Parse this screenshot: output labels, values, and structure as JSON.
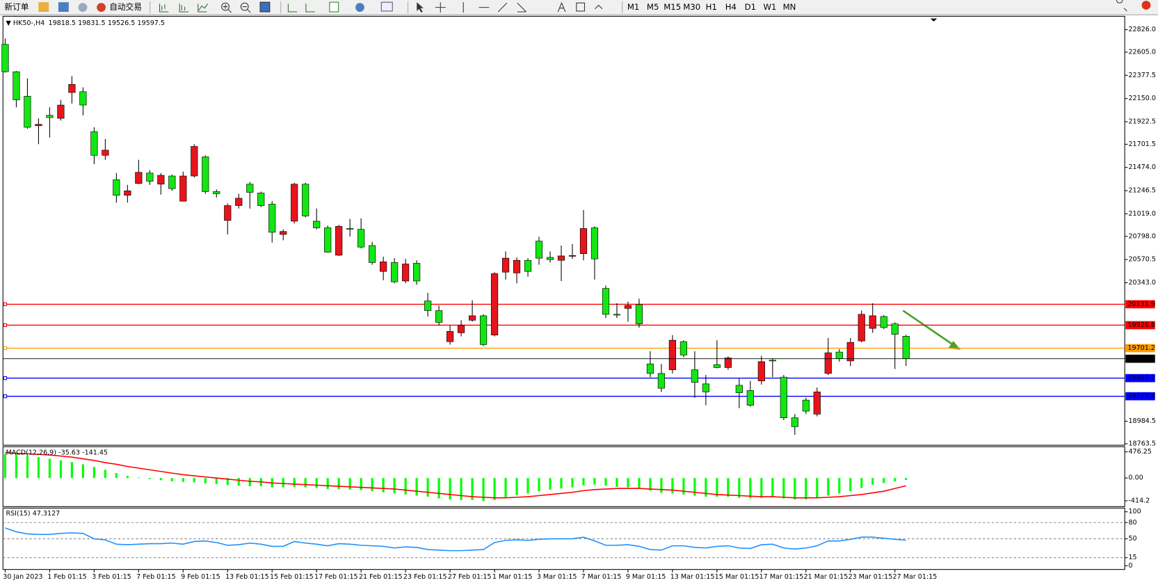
{
  "toolbar": {
    "new_order": "新订单",
    "auto_trade": "自动交易",
    "timeframes": [
      "M1",
      "M5",
      "M15",
      "M30",
      "H1",
      "H4",
      "D1",
      "W1",
      "MN"
    ]
  },
  "chart_data": [
    {
      "type": "candlestick",
      "title": "HK50-,H4",
      "categories": [
        "30 Jan 2023",
        null,
        null,
        null,
        "1 Feb 01:15",
        null,
        null,
        null,
        "3 Feb 01:15",
        null,
        null,
        null,
        "7 Feb 01:15",
        null,
        null,
        null,
        "9 Feb 01:15",
        null,
        null,
        null,
        "13 Feb 01:15",
        null,
        null,
        null,
        "15 Feb 01:15",
        null,
        null,
        null,
        "17 Feb 01:15",
        null,
        null,
        null,
        "21 Feb 01:15",
        null,
        null,
        null,
        "23 Feb 01:15",
        null,
        null,
        null,
        "27 Feb 01:15",
        null,
        null,
        null,
        "1 Mar 01:15",
        null,
        null,
        null,
        "3 Mar 01:15",
        null,
        null,
        null,
        "7 Mar 01:15",
        null,
        null,
        null,
        "9 Mar 01:15",
        null,
        null,
        null,
        "13 Mar 01:15",
        null,
        null,
        null,
        "15 Mar 01:15",
        null,
        null,
        null,
        "17 Mar 01:15",
        null,
        null,
        null,
        "21 Mar 01:15",
        null,
        null,
        null,
        "23 Mar 01:15",
        null,
        null,
        null,
        "27 Mar 01:15",
        null
      ],
      "ohlc": [
        [
          22681,
          22739,
          22405,
          22413
        ],
        [
          22413,
          22420,
          22064,
          22137
        ],
        [
          22173,
          22347,
          21854,
          21868
        ],
        [
          21883,
          21956,
          21702,
          21897
        ],
        [
          21985,
          22064,
          21767,
          21963
        ],
        [
          21956,
          22137,
          21934,
          22086
        ],
        [
          22209,
          22369,
          22101,
          22289
        ],
        [
          22217,
          22260,
          21985,
          22086
        ],
        [
          21825,
          21868,
          21506,
          21593
        ],
        [
          21593,
          21752,
          21549,
          21644
        ],
        [
          21353,
          21419,
          21129,
          21201
        ],
        [
          21201,
          21303,
          21129,
          21245
        ],
        [
          21317,
          21549,
          21310,
          21426
        ],
        [
          21419,
          21448,
          21303,
          21339
        ],
        [
          21310,
          21419,
          21208,
          21397
        ],
        [
          21390,
          21404,
          21245,
          21266
        ],
        [
          21143,
          21433,
          21140,
          21390
        ],
        [
          21390,
          21702,
          21375,
          21680
        ],
        [
          21578,
          21593,
          21216,
          21237
        ],
        [
          21237,
          21259,
          21179,
          21216
        ],
        [
          20954,
          21121,
          20817,
          21100
        ],
        [
          21100,
          21216,
          21071,
          21172
        ],
        [
          21310,
          21332,
          21071,
          21230
        ],
        [
          21223,
          21237,
          21085,
          21100
        ],
        [
          21114,
          21143,
          20737,
          20838
        ],
        [
          20817,
          20867,
          20759,
          20846
        ],
        [
          20947,
          21324,
          20925,
          21310
        ],
        [
          21310,
          21324,
          20984,
          20998
        ],
        [
          20947,
          21071,
          20867,
          20882
        ],
        [
          20882,
          20904,
          20640,
          20643
        ],
        [
          20613,
          20911,
          20606,
          20896
        ],
        [
          20875,
          20969,
          20795,
          20870
        ],
        [
          20867,
          20976,
          20679,
          20693
        ],
        [
          20708,
          20744,
          20519,
          20541
        ],
        [
          20454,
          20599,
          20367,
          20548
        ],
        [
          20541,
          20584,
          20338,
          20352
        ],
        [
          20360,
          20577,
          20338,
          20527
        ],
        [
          20534,
          20563,
          20323,
          20360
        ],
        [
          20164,
          20244,
          20012,
          20070
        ],
        [
          20070,
          20120,
          19924,
          19954
        ],
        [
          19765,
          19924,
          19736,
          19866
        ],
        [
          19852,
          19975,
          19816,
          19924
        ],
        [
          19975,
          20171,
          19961,
          20019
        ],
        [
          20019,
          20033,
          19721,
          19736
        ],
        [
          19830,
          20447,
          19816,
          20432
        ],
        [
          20447,
          20650,
          20374,
          20584
        ],
        [
          20439,
          20592,
          20338,
          20563
        ],
        [
          20563,
          20584,
          20403,
          20454
        ],
        [
          20751,
          20795,
          20519,
          20584
        ],
        [
          20592,
          20650,
          20541,
          20570
        ],
        [
          20563,
          20708,
          20360,
          20606
        ],
        [
          20606,
          20722,
          20577,
          20610
        ],
        [
          20628,
          21056,
          20563,
          20875
        ],
        [
          20882,
          20896,
          20374,
          20577
        ],
        [
          20287,
          20316,
          19997,
          20033
        ],
        [
          20033,
          20142,
          19997,
          20028
        ],
        [
          20091,
          20157,
          19961,
          20120
        ],
        [
          20128,
          20186,
          19903,
          19939
        ],
        [
          19547,
          19671,
          19417,
          19453
        ],
        [
          19453,
          19547,
          19272,
          19308
        ],
        [
          19489,
          19830,
          19453,
          19779
        ],
        [
          19765,
          19779,
          19612,
          19634
        ],
        [
          19489,
          19671,
          19214,
          19366
        ],
        [
          19351,
          19438,
          19141,
          19272
        ],
        [
          19540,
          19779,
          19504,
          19511
        ],
        [
          19511,
          19620,
          19489,
          19605
        ],
        [
          19337,
          19402,
          19112,
          19264
        ],
        [
          19286,
          19380,
          19127,
          19141
        ],
        [
          19380,
          19627,
          19344,
          19569
        ],
        [
          19583,
          19598,
          19417,
          19580
        ],
        [
          19417,
          19438,
          18996,
          19018
        ],
        [
          19018,
          19054,
          18851,
          18931
        ],
        [
          19192,
          19214,
          19054,
          19083
        ],
        [
          19054,
          19315,
          19032,
          19272
        ],
        [
          19453,
          19801,
          19438,
          19656
        ],
        [
          19663,
          19692,
          19569,
          19598
        ],
        [
          19576,
          19801,
          19525,
          19758
        ],
        [
          19772,
          20070,
          19758,
          20033
        ],
        [
          19895,
          20142,
          19852,
          20019
        ],
        [
          20012,
          20026,
          19888,
          19903
        ],
        [
          19939,
          19954,
          19496,
          19837
        ],
        [
          19818.5,
          19831.5,
          19526.5,
          19597.5
        ]
      ],
      "up_color": "#e8141c",
      "down_color": "#14e614",
      "ylim": [
        18749,
        22957
      ],
      "yticks": [
        {
          "value": 22826,
          "label": "22826.0"
        },
        {
          "value": 22605,
          "label": "22605.0"
        },
        22377.5,
        {
          "value": 22150,
          "label": "22150.0"
        },
        21922.5,
        21701.5,
        {
          "value": 21474,
          "label": "21474.0"
        },
        21246.5,
        {
          "value": 21019,
          "label": "21019.0"
        },
        {
          "value": 20798,
          "label": "20798.0"
        },
        20570.5,
        {
          "value": 20343,
          "label": "20343.0"
        },
        18984.5,
        18763.5
      ],
      "grid": false,
      "levels": [
        {
          "value": 20131.9,
          "color": "#ff0000"
        },
        {
          "value": 19926.8,
          "color": "#ff0000"
        },
        {
          "value": 19701.2,
          "color": "#ff9c00"
        },
        {
          "value": 19407.2,
          "color": "#0000ff"
        },
        {
          "value": 19229.4,
          "color": "#0000ff"
        }
      ]
    },
    {
      "type": "macd",
      "title": "MACD(12,26,9)",
      "histogram": {
        "color": "#00ff00",
        "values": [
          440,
          430,
          410,
          380,
          350,
          320,
          290,
          250,
          200,
          150,
          90,
          40,
          10,
          -20,
          -40,
          -60,
          -70,
          -80,
          -100,
          -110,
          -130,
          -140,
          -150,
          -150,
          -170,
          -170,
          -160,
          -170,
          -180,
          -200,
          -200,
          -210,
          -220,
          -240,
          -260,
          -280,
          -300,
          -320,
          -340,
          -370,
          -390,
          -400,
          -400,
          -420,
          -400,
          -350,
          -310,
          -280,
          -240,
          -210,
          -190,
          -170,
          -130,
          -120,
          -140,
          -160,
          -170,
          -190,
          -230,
          -270,
          -280,
          -300,
          -320,
          -340,
          -340,
          -340,
          -360,
          -370,
          -360,
          -350,
          -370,
          -390,
          -390,
          -370,
          -320,
          -280,
          -240,
          -180,
          -120,
          -90,
          -60,
          -35.63
        ]
      },
      "signal": {
        "color": "#ff0000",
        "values": [
          460,
          450,
          440,
          430,
          420,
          400,
          380,
          350,
          320,
          280,
          250,
          210,
          180,
          150,
          120,
          90,
          60,
          40,
          20,
          0,
          -20,
          -40,
          -60,
          -70,
          -90,
          -100,
          -110,
          -120,
          -130,
          -140,
          -150,
          -160,
          -170,
          -180,
          -190,
          -200,
          -220,
          -240,
          -260,
          -280,
          -300,
          -320,
          -340,
          -350,
          -360,
          -360,
          -350,
          -340,
          -320,
          -300,
          -280,
          -260,
          -230,
          -210,
          -200,
          -190,
          -190,
          -190,
          -200,
          -210,
          -220,
          -240,
          -260,
          -280,
          -300,
          -310,
          -320,
          -330,
          -340,
          -340,
          -350,
          -360,
          -360,
          -360,
          -350,
          -340,
          -320,
          -300,
          -270,
          -240,
          -190,
          -141.45
        ]
      },
      "ylim": [
        -520,
        570
      ],
      "yticks": [
        476.25,
        {
          "value": 0,
          "label": "0.00"
        },
        -414.2
      ]
    },
    {
      "type": "rsi",
      "title": "RSI(15)",
      "color": "#1e90ff",
      "values": [
        70,
        63,
        59,
        58,
        58,
        60,
        61,
        60,
        50,
        48,
        40,
        39,
        40,
        41,
        41,
        42,
        40,
        45,
        46,
        43,
        38,
        39,
        42,
        40,
        36,
        36,
        45,
        42,
        40,
        37,
        41,
        40,
        38,
        37,
        36,
        33,
        35,
        34,
        30,
        29,
        28,
        28,
        29,
        30,
        43,
        47,
        48,
        47,
        49,
        50,
        50,
        50,
        53,
        46,
        38,
        38,
        39,
        36,
        30,
        29,
        37,
        37,
        34,
        33,
        36,
        37,
        33,
        32,
        39,
        40,
        33,
        31,
        33,
        37,
        46,
        46,
        49,
        53,
        53,
        51,
        49,
        47.3127
      ],
      "ylim": [
        0,
        100
      ],
      "yticks": [
        100,
        80,
        50,
        15,
        0
      ]
    }
  ]
}
